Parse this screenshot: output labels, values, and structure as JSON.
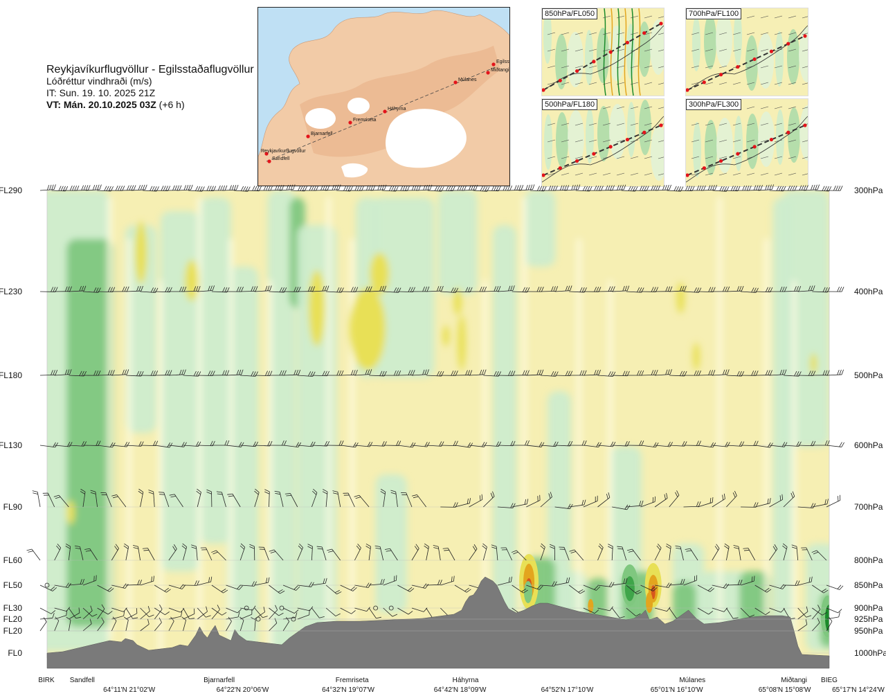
{
  "header": {
    "title": "Reykjavíkurflugvöllur - Egilsstaðaflugvöllur",
    "subtitle": "Lóðréttur vindhraði (m/s)",
    "issue_time": "IT: Sun. 19. 10. 2025 21Z",
    "valid_time_bold": "VT: Mán. 20.10.2025 03Z",
    "valid_time_offset": "(+6 h)"
  },
  "map_inset": {
    "stations": [
      {
        "name": "Reykjavíkurflugvöllur"
      },
      {
        "name": "Sandfell"
      },
      {
        "name": "Bjarnarfell"
      },
      {
        "name": "Fremriseta"
      },
      {
        "name": "Háhyrna"
      },
      {
        "name": "Múlanes"
      },
      {
        "name": "Miðtangi"
      },
      {
        "name": "Egilsst"
      }
    ]
  },
  "mini_maps": [
    {
      "label": "850hPa/FL050"
    },
    {
      "label": "700hPa/FL100"
    },
    {
      "label": "500hPa/FL180"
    },
    {
      "label": "300hPa/FL300"
    }
  ],
  "chart_data": {
    "type": "heatmap",
    "variable": "Lóðréttur vindhraði (m/s)",
    "left_axis": [
      "FL290",
      "FL230",
      "FL180",
      "FL130",
      "FL90",
      "FL60",
      "FL50",
      "FL30",
      "FL20",
      "FL20",
      "FL0"
    ],
    "right_axis": [
      "300hPa",
      "400hPa",
      "500hPa",
      "600hPa",
      "700hPa",
      "800hPa",
      "850hPa",
      "900hPa",
      "925hPa",
      "950hPa",
      "1000hPa"
    ],
    "levels_hpa": [
      300,
      400,
      500,
      600,
      700,
      800,
      850,
      900,
      925,
      950,
      1000
    ],
    "stations_bottom": [
      {
        "name": "BIRK",
        "t": 0.0
      },
      {
        "name": "Sandfell",
        "t": 0.045
      },
      {
        "name": "Bjarnarfell",
        "t": 0.22
      },
      {
        "name": "Fremriseta",
        "t": 0.39
      },
      {
        "name": "Háhyrna",
        "t": 0.535
      },
      {
        "name": "Múlanes",
        "t": 0.825
      },
      {
        "name": "Miðtangi",
        "t": 0.955
      },
      {
        "name": "BIEG",
        "t": 1.0
      }
    ],
    "coordinates_bottom": [
      {
        "label": "64°11'N 21°02'W",
        "t": 0.105
      },
      {
        "label": "64°22'N 20°06'W",
        "t": 0.25
      },
      {
        "label": "64°32'N 19°07'W",
        "t": 0.385
      },
      {
        "label": "64°42'N 18°09'W",
        "t": 0.528
      },
      {
        "label": "64°52'N 17°10'W",
        "t": 0.665
      },
      {
        "label": "65°01'N 16°10'W",
        "t": 0.805
      },
      {
        "label": "65°08'N 15°08'W",
        "t": 0.943
      },
      {
        "label": "65°17'N 14°24'W",
        "t": 1.075
      }
    ],
    "colors": {
      "strong_down": "#1a8a2a",
      "mid_down": "#7fc77f",
      "weak_down": "#cdeccd",
      "neutral": "#fefde6",
      "weak_up": "#f6efb3",
      "mid_up": "#e8e056",
      "strong_up": "#e3a51e",
      "max_up": "#d7561c",
      "terrain": "#7a7a7a"
    }
  }
}
